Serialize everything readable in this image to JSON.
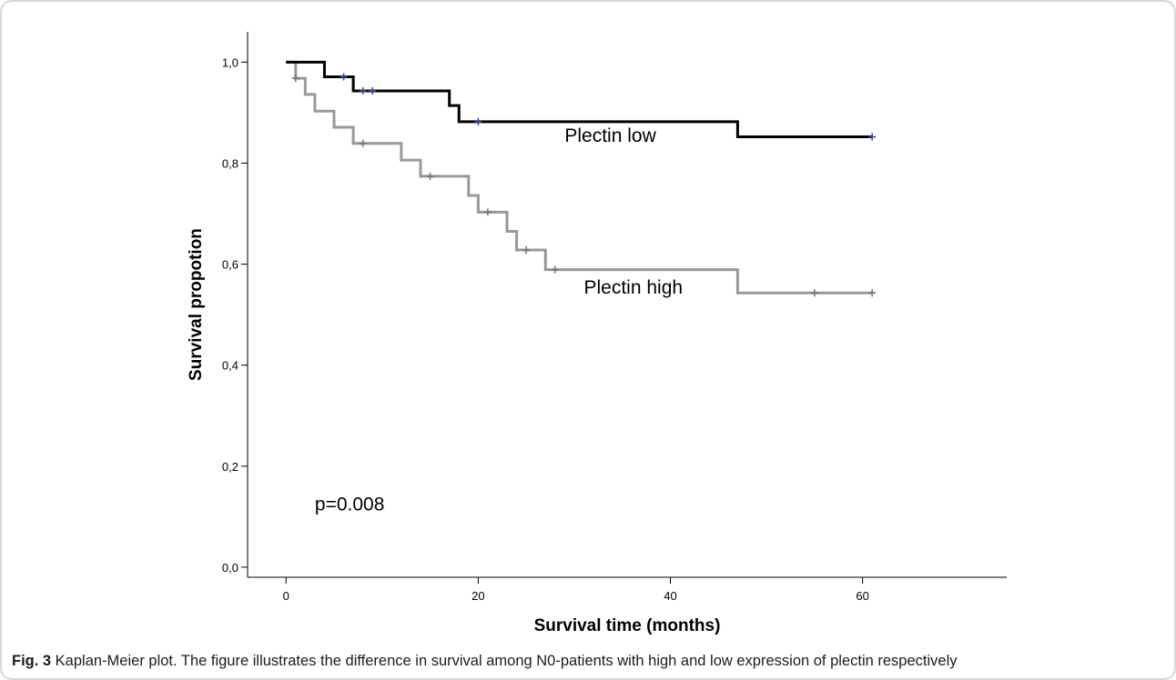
{
  "chart_data": {
    "type": "line",
    "subtype": "kaplan-meier-step",
    "xlabel": "Survival time (months)",
    "ylabel": "Survival propotion",
    "xlim": [
      -4,
      75
    ],
    "ylim": [
      -0.02,
      1.06
    ],
    "xticks": [
      0,
      20,
      40,
      60
    ],
    "xtick_labels": [
      "0",
      "20",
      "40",
      "60"
    ],
    "yticks": [
      0.0,
      0.2,
      0.4,
      0.6,
      0.8,
      1.0
    ],
    "ytick_labels": [
      "0,0",
      "0,2",
      "0,4",
      "0,6",
      "0,8",
      "1,0"
    ],
    "grid": false,
    "legend": "none",
    "annotations": [
      {
        "text": "p=0.008",
        "x": 3,
        "y": 0.112
      }
    ],
    "series": [
      {
        "name": "Plectin low",
        "color": "#000000",
        "censor_color": "#3a4faa",
        "label_pos": {
          "x": 29,
          "y": 0.842
        },
        "steps": [
          [
            0,
            1.0
          ],
          [
            4,
            0.971
          ],
          [
            7,
            0.943
          ],
          [
            17,
            0.914
          ],
          [
            18,
            0.882
          ],
          [
            47,
            0.852
          ],
          [
            61,
            0.852
          ]
        ],
        "censored": [
          [
            6,
            0.971
          ],
          [
            8,
            0.943
          ],
          [
            9,
            0.943
          ],
          [
            20,
            0.882
          ],
          [
            61,
            0.852
          ]
        ]
      },
      {
        "name": "Plectin high",
        "color": "#999999",
        "censor_color": "#777777",
        "label_pos": {
          "x": 31,
          "y": 0.542
        },
        "steps": [
          [
            0,
            1.0
          ],
          [
            1,
            0.968
          ],
          [
            2,
            0.936
          ],
          [
            3,
            0.903
          ],
          [
            5,
            0.871
          ],
          [
            7,
            0.839
          ],
          [
            12,
            0.806
          ],
          [
            14,
            0.774
          ],
          [
            19,
            0.736
          ],
          [
            20,
            0.703
          ],
          [
            23,
            0.665
          ],
          [
            24,
            0.628
          ],
          [
            27,
            0.589
          ],
          [
            47,
            0.543
          ],
          [
            61,
            0.543
          ]
        ],
        "censored": [
          [
            1,
            0.968
          ],
          [
            8,
            0.839
          ],
          [
            15,
            0.774
          ],
          [
            21,
            0.703
          ],
          [
            25,
            0.628
          ],
          [
            28,
            0.589
          ],
          [
            55,
            0.543
          ],
          [
            61,
            0.543
          ]
        ]
      }
    ]
  },
  "caption": {
    "label": "Fig. 3",
    "text": " Kaplan-Meier plot. The figure illustrates the difference in survival among N0-patients with high and low expression of plectin respectively"
  }
}
